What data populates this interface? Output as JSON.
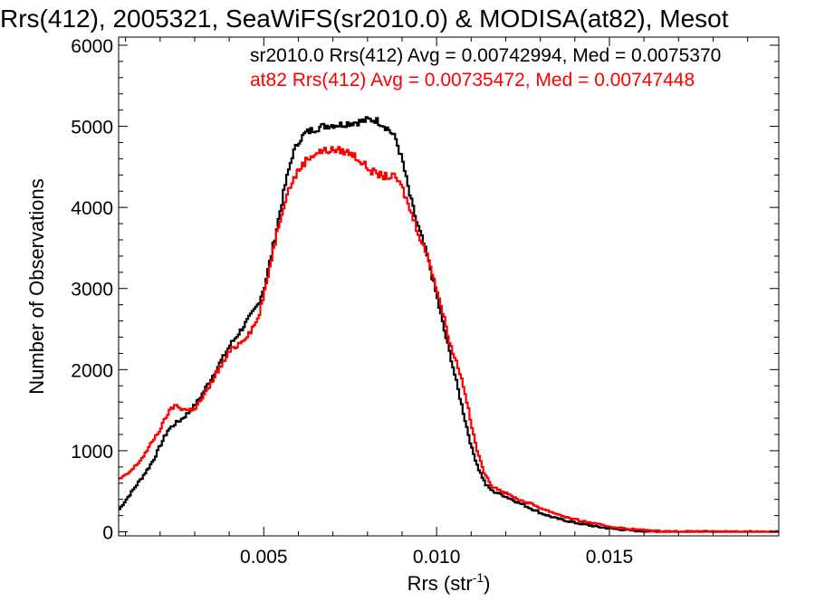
{
  "chart_data": {
    "type": "line",
    "title": "Rrs(412), 2005321, SeaWiFS(sr2010.0) & MODISA(at82), Mesot",
    "xlabel": "Rrs (str",
    "xlabel_sup": "-1",
    "xlabel_close": ")",
    "ylabel": "Number of Observations",
    "xlim": [
      0.0008,
      0.0199
    ],
    "ylim": [
      -50,
      6100
    ],
    "x_ticks": [
      0.005,
      0.01,
      0.015
    ],
    "x_tick_labels": [
      "0.005",
      "0.010",
      "0.015"
    ],
    "y_ticks": [
      0,
      1000,
      2000,
      3000,
      4000,
      5000,
      6000
    ],
    "y_tick_labels": [
      "0",
      "1000",
      "2000",
      "3000",
      "4000",
      "5000",
      "6000"
    ],
    "grid": false,
    "legend_position": "top-right",
    "series": [
      {
        "name": "sr2010.0 Rrs(412) Avg = 0.00742994, Med = 0.0075370",
        "color": "#000000",
        "points": [
          [
            0.0008,
            280
          ],
          [
            0.001,
            400
          ],
          [
            0.0012,
            520
          ],
          [
            0.0014,
            640
          ],
          [
            0.0016,
            760
          ],
          [
            0.0018,
            900
          ],
          [
            0.002,
            1080
          ],
          [
            0.0022,
            1250
          ],
          [
            0.0024,
            1330
          ],
          [
            0.0026,
            1390
          ],
          [
            0.0028,
            1470
          ],
          [
            0.003,
            1570
          ],
          [
            0.0032,
            1700
          ],
          [
            0.0034,
            1850
          ],
          [
            0.0036,
            2000
          ],
          [
            0.0038,
            2150
          ],
          [
            0.004,
            2300
          ],
          [
            0.0042,
            2420
          ],
          [
            0.0044,
            2540
          ],
          [
            0.0046,
            2660
          ],
          [
            0.0048,
            2800
          ],
          [
            0.005,
            3030
          ],
          [
            0.0052,
            3420
          ],
          [
            0.0054,
            3850
          ],
          [
            0.0056,
            4280
          ],
          [
            0.0058,
            4640
          ],
          [
            0.006,
            4830
          ],
          [
            0.0062,
            4920
          ],
          [
            0.0064,
            4960
          ],
          [
            0.0066,
            4990
          ],
          [
            0.0068,
            5010
          ],
          [
            0.007,
            5020
          ],
          [
            0.0072,
            5020
          ],
          [
            0.0074,
            5040
          ],
          [
            0.0076,
            5050
          ],
          [
            0.0078,
            5060
          ],
          [
            0.008,
            5080
          ],
          [
            0.0082,
            5080
          ],
          [
            0.0084,
            5030
          ],
          [
            0.0086,
            4960
          ],
          [
            0.0088,
            4840
          ],
          [
            0.009,
            4550
          ],
          [
            0.0092,
            4150
          ],
          [
            0.0094,
            3820
          ],
          [
            0.0096,
            3550
          ],
          [
            0.0098,
            3240
          ],
          [
            0.01,
            2870
          ],
          [
            0.0102,
            2480
          ],
          [
            0.0104,
            2130
          ],
          [
            0.0106,
            1750
          ],
          [
            0.0108,
            1380
          ],
          [
            0.011,
            1020
          ],
          [
            0.0112,
            770
          ],
          [
            0.0114,
            580
          ],
          [
            0.0116,
            500
          ],
          [
            0.0118,
            470
          ],
          [
            0.012,
            430
          ],
          [
            0.0122,
            390
          ],
          [
            0.0124,
            350
          ],
          [
            0.0126,
            310
          ],
          [
            0.0128,
            270
          ],
          [
            0.013,
            230
          ],
          [
            0.0132,
            200
          ],
          [
            0.0134,
            170
          ],
          [
            0.0136,
            150
          ],
          [
            0.0138,
            130
          ],
          [
            0.014,
            110
          ],
          [
            0.0142,
            95
          ],
          [
            0.0144,
            80
          ],
          [
            0.0146,
            65
          ],
          [
            0.0148,
            52
          ],
          [
            0.015,
            42
          ],
          [
            0.0152,
            32
          ],
          [
            0.0154,
            25
          ],
          [
            0.0156,
            18
          ],
          [
            0.0158,
            12
          ],
          [
            0.016,
            8
          ],
          [
            0.0162,
            5
          ],
          [
            0.0164,
            3
          ],
          [
            0.0168,
            1
          ],
          [
            0.0175,
            0
          ],
          [
            0.0199,
            0
          ]
        ]
      },
      {
        "name": "at82 Rrs(412) Avg = 0.00735472, Med = 0.00747448",
        "color": "#ff0000",
        "points": [
          [
            0.0008,
            650
          ],
          [
            0.001,
            700
          ],
          [
            0.0012,
            780
          ],
          [
            0.0014,
            880
          ],
          [
            0.0016,
            1000
          ],
          [
            0.0018,
            1150
          ],
          [
            0.002,
            1280
          ],
          [
            0.0022,
            1460
          ],
          [
            0.0024,
            1560
          ],
          [
            0.0026,
            1520
          ],
          [
            0.0028,
            1500
          ],
          [
            0.003,
            1530
          ],
          [
            0.0032,
            1650
          ],
          [
            0.0034,
            1780
          ],
          [
            0.0036,
            1960
          ],
          [
            0.0038,
            2080
          ],
          [
            0.004,
            2230
          ],
          [
            0.0042,
            2300
          ],
          [
            0.0044,
            2380
          ],
          [
            0.0046,
            2480
          ],
          [
            0.0048,
            2620
          ],
          [
            0.005,
            2950
          ],
          [
            0.0052,
            3380
          ],
          [
            0.0054,
            3780
          ],
          [
            0.0056,
            4110
          ],
          [
            0.0058,
            4320
          ],
          [
            0.006,
            4470
          ],
          [
            0.0062,
            4580
          ],
          [
            0.0064,
            4650
          ],
          [
            0.0066,
            4690
          ],
          [
            0.0068,
            4700
          ],
          [
            0.007,
            4710
          ],
          [
            0.0072,
            4700
          ],
          [
            0.0074,
            4680
          ],
          [
            0.0076,
            4640
          ],
          [
            0.0078,
            4560
          ],
          [
            0.008,
            4480
          ],
          [
            0.0082,
            4420
          ],
          [
            0.0084,
            4390
          ],
          [
            0.0086,
            4380
          ],
          [
            0.0088,
            4370
          ],
          [
            0.009,
            4220
          ],
          [
            0.0092,
            3980
          ],
          [
            0.0094,
            3750
          ],
          [
            0.0096,
            3520
          ],
          [
            0.0098,
            3290
          ],
          [
            0.01,
            2960
          ],
          [
            0.0102,
            2620
          ],
          [
            0.0104,
            2270
          ],
          [
            0.0106,
            2040
          ],
          [
            0.0108,
            1720
          ],
          [
            0.011,
            1280
          ],
          [
            0.0112,
            920
          ],
          [
            0.0114,
            680
          ],
          [
            0.0116,
            560
          ],
          [
            0.0118,
            520
          ],
          [
            0.012,
            470
          ],
          [
            0.0122,
            430
          ],
          [
            0.0124,
            390
          ],
          [
            0.0126,
            360
          ],
          [
            0.0128,
            330
          ],
          [
            0.013,
            290
          ],
          [
            0.0132,
            260
          ],
          [
            0.0134,
            230
          ],
          [
            0.0136,
            200
          ],
          [
            0.0138,
            170
          ],
          [
            0.014,
            150
          ],
          [
            0.0142,
            130
          ],
          [
            0.0144,
            115
          ],
          [
            0.0146,
            95
          ],
          [
            0.0148,
            80
          ],
          [
            0.015,
            65
          ],
          [
            0.0152,
            52
          ],
          [
            0.0154,
            42
          ],
          [
            0.0156,
            34
          ],
          [
            0.0158,
            26
          ],
          [
            0.016,
            20
          ],
          [
            0.0162,
            15
          ],
          [
            0.0164,
            10
          ],
          [
            0.0166,
            7
          ],
          [
            0.0168,
            4
          ],
          [
            0.0172,
            2
          ],
          [
            0.018,
            0
          ],
          [
            0.0199,
            0
          ]
        ]
      }
    ]
  }
}
